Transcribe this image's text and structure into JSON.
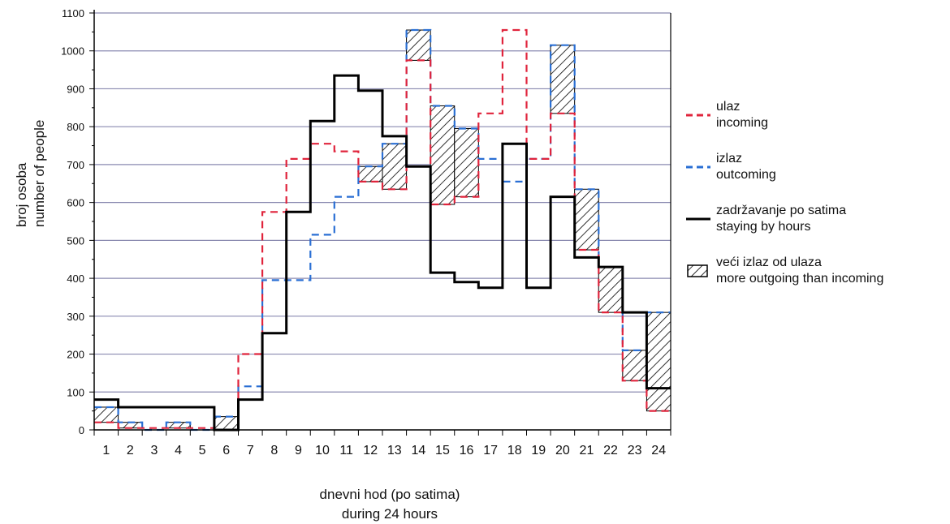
{
  "chart_data": {
    "type": "line",
    "title": "",
    "xlabel": [
      "dnevni hod (po satima)",
      "during 24 hours"
    ],
    "ylabel": [
      "broj osoba",
      "number of people"
    ],
    "categories": [
      "1",
      "2",
      "3",
      "4",
      "5",
      "6",
      "7",
      "8",
      "9",
      "10",
      "11",
      "12",
      "13",
      "14",
      "15",
      "16",
      "17",
      "18",
      "19",
      "20",
      "21",
      "22",
      "23",
      "24"
    ],
    "ylim": [
      0,
      1100
    ],
    "yticks": [
      "0",
      "100",
      "200",
      "300",
      "400",
      "500",
      "600",
      "700",
      "800",
      "900",
      "1000",
      "1100"
    ],
    "grid": true,
    "legend_position": "right",
    "series": [
      {
        "name": "ulaz / incoming",
        "style": "dashed",
        "color": "#e0243c",
        "values": [
          20,
          5,
          5,
          5,
          5,
          0,
          200,
          575,
          715,
          755,
          735,
          655,
          635,
          975,
          595,
          615,
          835,
          1055,
          715,
          835,
          475,
          310,
          130,
          50
        ]
      },
      {
        "name": "izlaz / outcoming",
        "style": "dashed",
        "color": "#2a6fd4",
        "values": [
          60,
          20,
          0,
          20,
          0,
          35,
          115,
          395,
          395,
          515,
          615,
          695,
          755,
          1055,
          855,
          795,
          715,
          655,
          715,
          1015,
          635,
          430,
          210,
          310
        ]
      },
      {
        "name": "zadržavanje po satima / staying by hours",
        "style": "solid",
        "color": "#000000",
        "values": [
          80,
          60,
          60,
          60,
          60,
          0,
          80,
          255,
          575,
          815,
          935,
          895,
          775,
          695,
          415,
          390,
          375,
          755,
          375,
          615,
          455,
          430,
          310,
          110
        ]
      }
    ],
    "hatch_label": "veći izlaz od ulaza / more outgoing than incoming"
  },
  "legend": [
    {
      "key": "dash-red",
      "line1": "ulaz",
      "line2": "incoming",
      "color": "#e0243c"
    },
    {
      "key": "dash-blue",
      "line1": "izlaz",
      "line2": "outcoming",
      "color": "#2a6fd4"
    },
    {
      "key": "solid-black",
      "line1": "zadržavanje po satima",
      "line2": "staying by hours",
      "color": "#000000"
    },
    {
      "key": "hatch",
      "line1": "veći izlaz od ulaza",
      "line2": "more outgoing than incoming",
      "color": "#000000"
    }
  ]
}
